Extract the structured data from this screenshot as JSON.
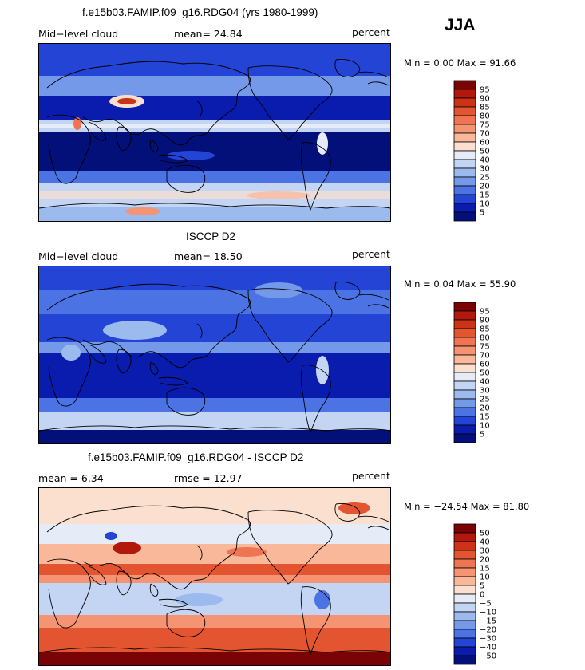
{
  "season": "JJA",
  "panels": [
    {
      "title": "f.e15b03.FAMIP.f09_g16.RDG04 (yrs 1980-1999)",
      "left_label": "Mid−level cloud",
      "center_label": "mean=   24.84",
      "units": "percent",
      "minmax": "Min =    0.00 Max =   91.66",
      "colorbar_labels": [
        "95",
        "90",
        "85",
        "80",
        "75",
        "70",
        "60",
        "50",
        "40",
        "30",
        "25",
        "20",
        "15",
        "10",
        "5"
      ],
      "colorbar_colors": [
        "#7a0303",
        "#b2180c",
        "#cc3316",
        "#e25530",
        "#ee7452",
        "#f59472",
        "#fab89a",
        "#fbe0cf",
        "#e6ecf7",
        "#c3d5f2",
        "#9bbaee",
        "#7499e8",
        "#4b73e3",
        "#2344d4",
        "#0a1cae",
        "#04107a"
      ]
    },
    {
      "title": "ISCCP D2",
      "left_label": "Mid−level cloud",
      "center_label": "mean=   18.50",
      "units": "percent",
      "minmax": "Min =    0.04 Max =   55.90",
      "colorbar_labels": [
        "95",
        "90",
        "85",
        "80",
        "75",
        "70",
        "60",
        "50",
        "40",
        "30",
        "25",
        "20",
        "15",
        "10",
        "5"
      ],
      "colorbar_colors": [
        "#7a0303",
        "#b2180c",
        "#cc3316",
        "#e25530",
        "#ee7452",
        "#f59472",
        "#fab89a",
        "#fbe0cf",
        "#e6ecf7",
        "#c3d5f2",
        "#9bbaee",
        "#7499e8",
        "#4b73e3",
        "#2344d4",
        "#0a1cae",
        "#04107a"
      ]
    },
    {
      "title": "f.e15b03.FAMIP.f09_g16.RDG04 - ISCCP D2",
      "left_label": "mean =     6.34",
      "center_label": "rmse =    12.97",
      "units": "percent",
      "minmax": "Min = −24.54 Max =   81.80",
      "colorbar_labels": [
        "50",
        "40",
        "30",
        "20",
        "15",
        "10",
        "5",
        "0",
        "−5",
        "−10",
        "−15",
        "−20",
        "−30",
        "−40",
        "−50"
      ],
      "colorbar_colors": [
        "#7a0303",
        "#b2180c",
        "#cc3316",
        "#e25530",
        "#ee7452",
        "#f59472",
        "#fab89a",
        "#fbe0cf",
        "#e6ecf7",
        "#c3d5f2",
        "#9bbaee",
        "#7499e8",
        "#4b73e3",
        "#2344d4",
        "#0a1cae",
        "#04107a"
      ]
    }
  ]
}
